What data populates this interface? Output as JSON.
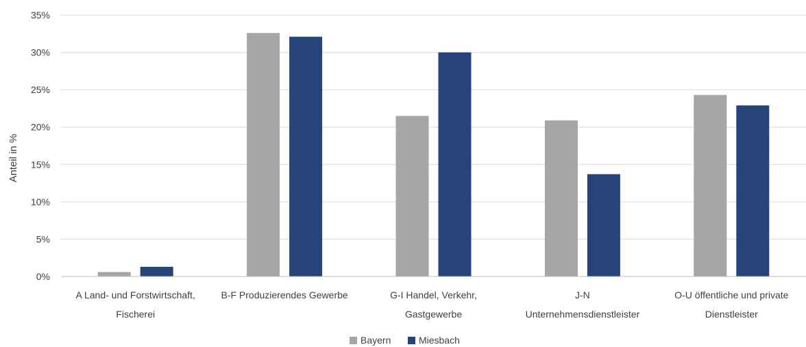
{
  "chart_data": {
    "type": "bar",
    "categories": [
      [
        "A Land- und Forstwirtschaft,",
        "Fischerei"
      ],
      [
        "B-F Produzierendes Gewerbe"
      ],
      [
        "G-I Handel, Verkehr,",
        "Gastgewerbe"
      ],
      [
        "J-N",
        "Unternehmensdienstleister"
      ],
      [
        "O-U öffentliche und private",
        "Dienstleister"
      ]
    ],
    "series": [
      {
        "name": "Bayern",
        "color": "#a6a6a6",
        "values": [
          0.6,
          32.6,
          21.5,
          20.9,
          24.3
        ]
      },
      {
        "name": "Miesbach",
        "color": "#264478",
        "values": [
          1.3,
          32.1,
          30.0,
          13.7,
          22.9
        ]
      }
    ],
    "ylabel": "Anteil in %",
    "ylim": [
      0,
      35
    ],
    "yticks": [
      0,
      5,
      10,
      15,
      20,
      25,
      30,
      35
    ],
    "ytick_labels": [
      "0%",
      "5%",
      "10%",
      "15%",
      "20%",
      "25%",
      "30%",
      "35%"
    ],
    "grid": true,
    "legend": "bottom-center"
  }
}
